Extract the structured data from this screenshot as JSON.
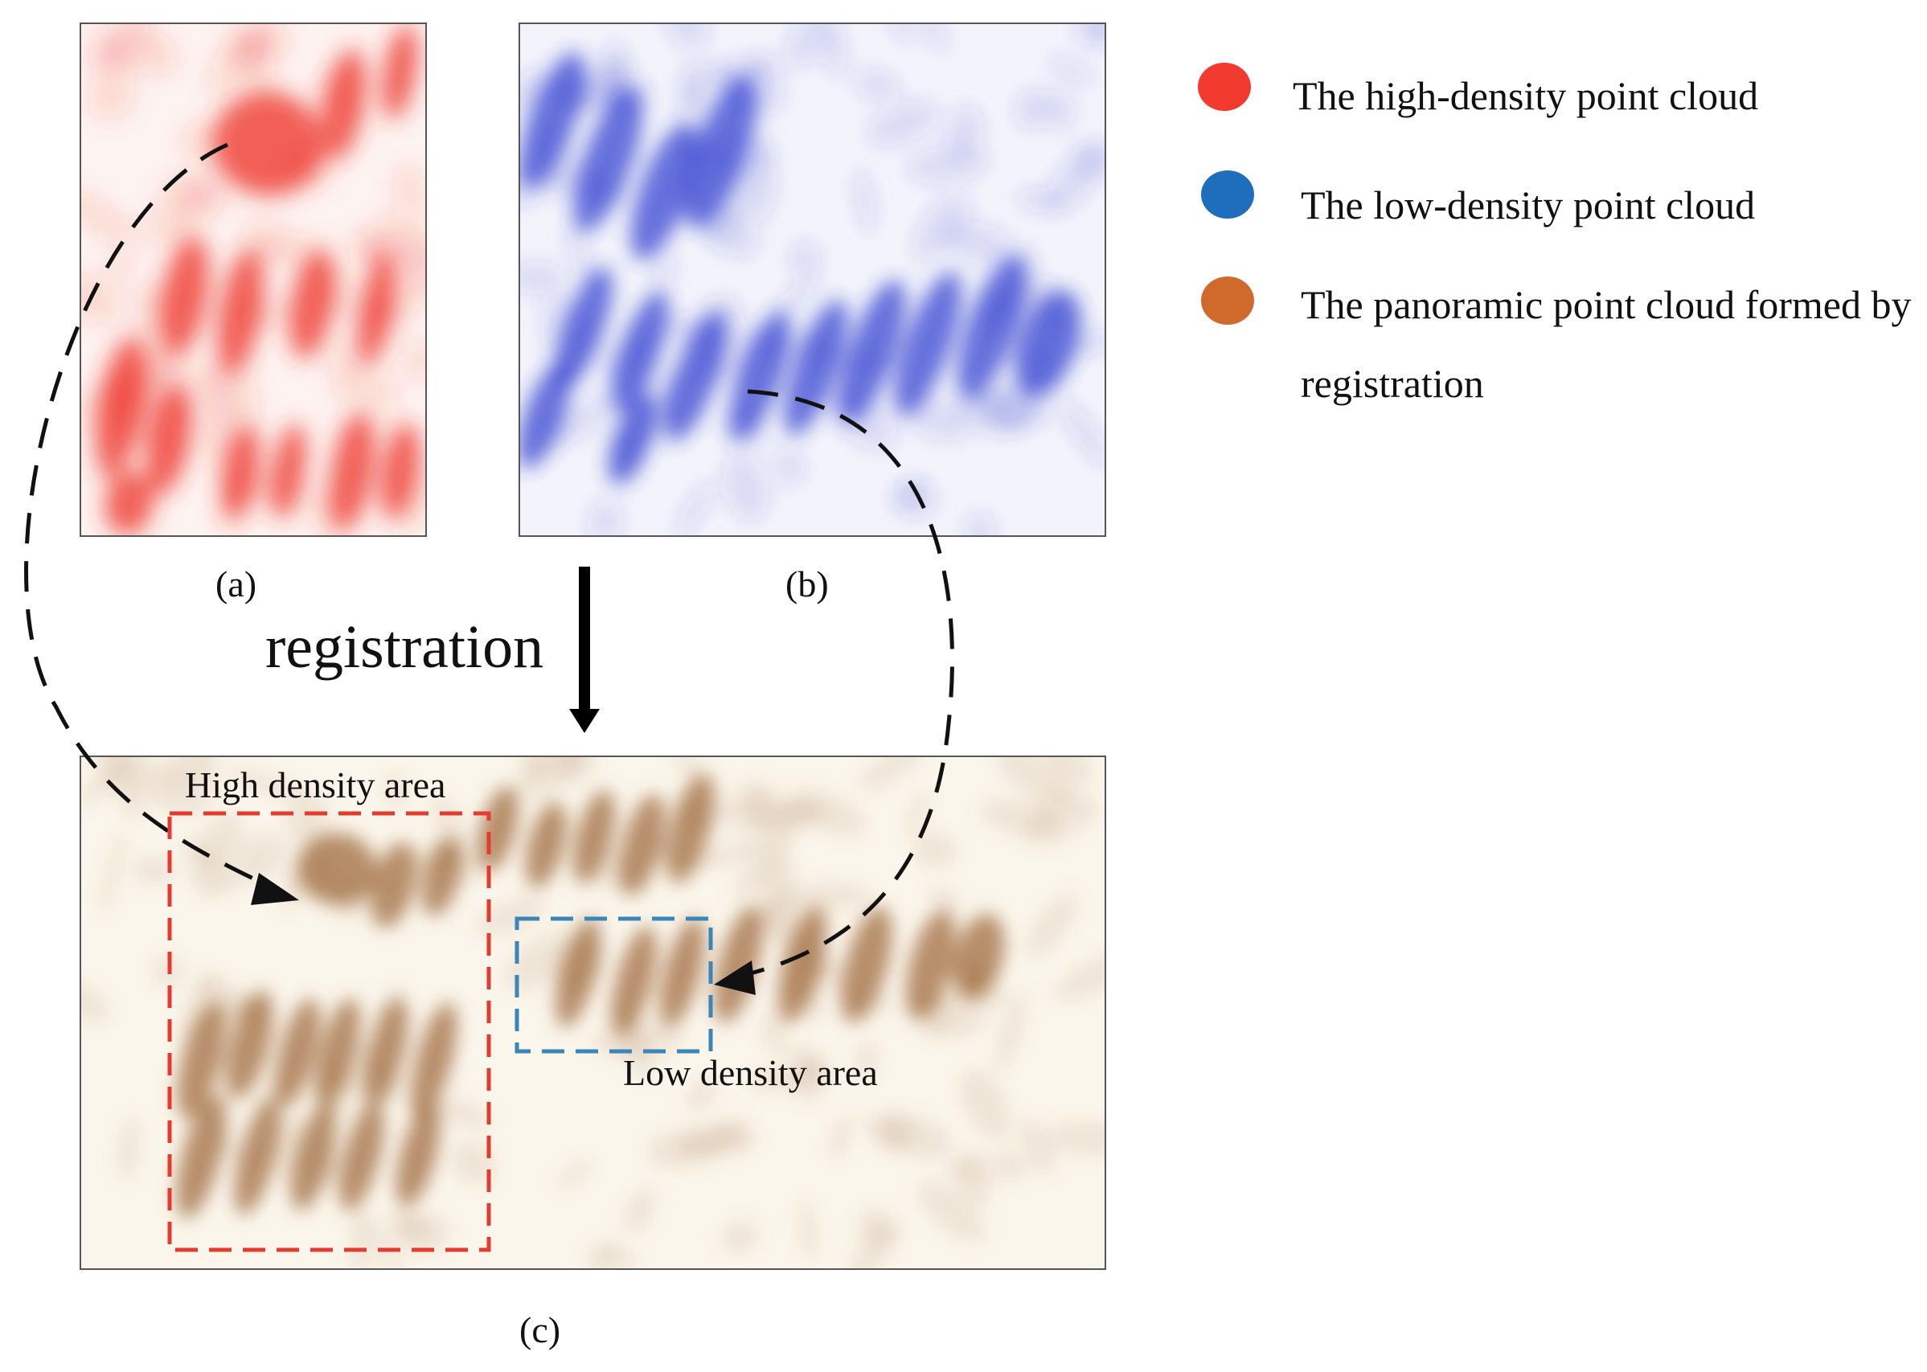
{
  "colors": {
    "high_density": "#f23b2e",
    "low_density": "#1f6dbd",
    "panoramic": "#cf6a2c",
    "points_red": "#ec2b23",
    "points_blue": "#2a36cf",
    "points_brown": "#9a6233",
    "high_box": "#e33b2f",
    "low_box": "#3a86b8"
  },
  "captions": {
    "a": "(a)",
    "b": "(b)",
    "c": "(c)"
  },
  "arrow_label": "registration",
  "areas": {
    "high": "High density area",
    "low": "Low density area"
  },
  "legend": [
    {
      "label": "The high-density point cloud",
      "color": "#f23b2e"
    },
    {
      "label": "The low-density point cloud",
      "color": "#1f6dbd"
    },
    {
      "label": "The panoramic point cloud formed by registration",
      "color": "#cf6a2c"
    }
  ]
}
